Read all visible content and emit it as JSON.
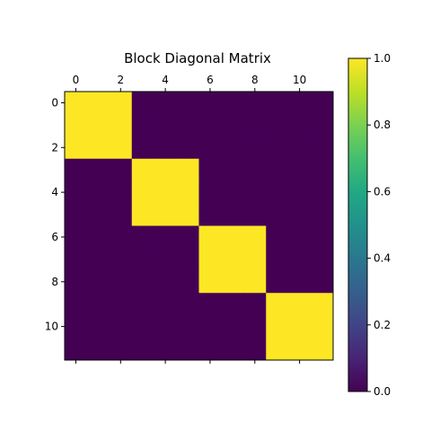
{
  "chart_data": {
    "type": "heatmap",
    "title": "Block Diagonal Matrix",
    "rows": 12,
    "cols": 12,
    "values": [
      [
        1,
        1,
        1,
        0,
        0,
        0,
        0,
        0,
        0,
        0,
        0,
        0
      ],
      [
        1,
        1,
        1,
        0,
        0,
        0,
        0,
        0,
        0,
        0,
        0,
        0
      ],
      [
        1,
        1,
        1,
        0,
        0,
        0,
        0,
        0,
        0,
        0,
        0,
        0
      ],
      [
        0,
        0,
        0,
        1,
        1,
        1,
        0,
        0,
        0,
        0,
        0,
        0
      ],
      [
        0,
        0,
        0,
        1,
        1,
        1,
        0,
        0,
        0,
        0,
        0,
        0
      ],
      [
        0,
        0,
        0,
        1,
        1,
        1,
        0,
        0,
        0,
        0,
        0,
        0
      ],
      [
        0,
        0,
        0,
        0,
        0,
        0,
        1,
        1,
        1,
        0,
        0,
        0
      ],
      [
        0,
        0,
        0,
        0,
        0,
        0,
        1,
        1,
        1,
        0,
        0,
        0
      ],
      [
        0,
        0,
        0,
        0,
        0,
        0,
        1,
        1,
        1,
        0,
        0,
        0
      ],
      [
        0,
        0,
        0,
        0,
        0,
        0,
        0,
        0,
        0,
        1,
        1,
        1
      ],
      [
        0,
        0,
        0,
        0,
        0,
        0,
        0,
        0,
        0,
        1,
        1,
        1
      ],
      [
        0,
        0,
        0,
        0,
        0,
        0,
        0,
        0,
        0,
        1,
        1,
        1
      ]
    ],
    "x_ticks": [
      0,
      2,
      4,
      6,
      8,
      10
    ],
    "x_tick_labels": [
      "0",
      "2",
      "4",
      "6",
      "8",
      "10"
    ],
    "y_ticks": [
      0,
      2,
      4,
      6,
      8,
      10
    ],
    "y_tick_labels": [
      "0",
      "2",
      "4",
      "6",
      "8",
      "10"
    ],
    "x_axis_position": "top",
    "colormap": "viridis",
    "color_low": "#440154",
    "color_high": "#fde725",
    "colorbar": {
      "range": [
        0.0,
        1.0
      ],
      "ticks": [
        0.0,
        0.2,
        0.4,
        0.6,
        0.8,
        1.0
      ],
      "tick_labels": [
        "0.0",
        "0.2",
        "0.4",
        "0.6",
        "0.8",
        "1.0"
      ],
      "position": "right"
    },
    "grid": false
  }
}
